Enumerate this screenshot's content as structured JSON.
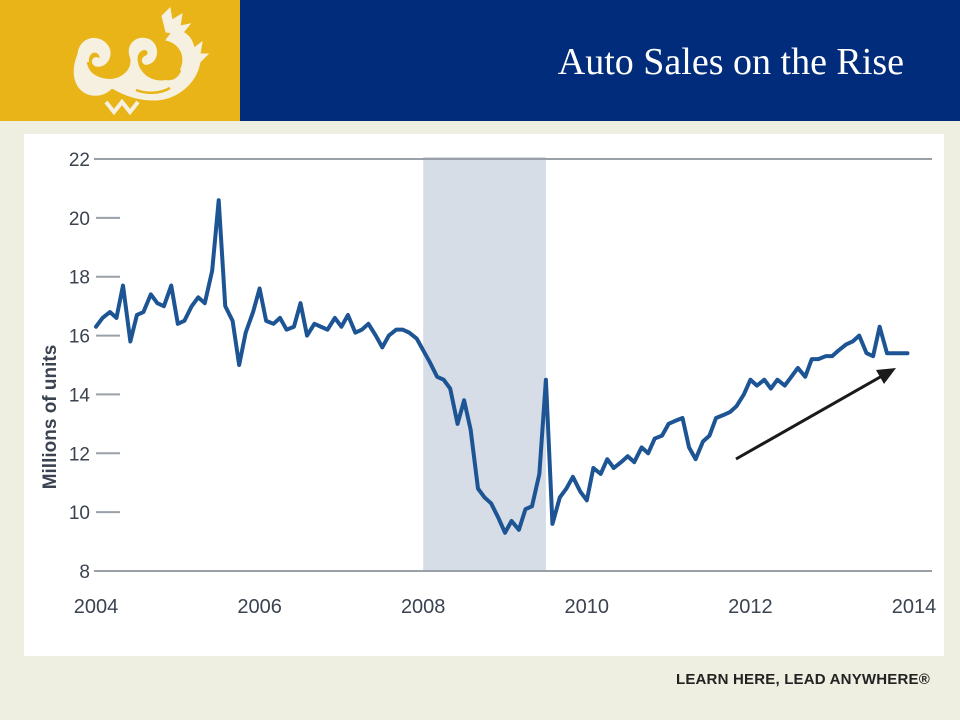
{
  "header": {
    "title": "Auto Sales on the Rise",
    "logo_icon": "dragon-logo-icon"
  },
  "colors": {
    "header_blue": "#002c7b",
    "logo_gold": "#e8b417",
    "series_line": "#1d5494",
    "recession_shade": "#d6dde6"
  },
  "chart_data": {
    "type": "line",
    "title": "",
    "xlabel": "",
    "ylabel": "Millions of units",
    "xlim": [
      2004,
      2014
    ],
    "ylim": [
      8,
      22
    ],
    "y_ticks": [
      "8",
      "10",
      "12",
      "14",
      "16",
      "18",
      "20",
      "22"
    ],
    "x_ticks": [
      "2004",
      "2006",
      "2008",
      "2010",
      "2012",
      "2014"
    ],
    "grid": "horizontal",
    "shaded_region": [
      2008,
      2009.5
    ],
    "annotation": "upward trend arrow (2011.8 to 2014)",
    "series": [
      {
        "name": "",
        "x": [
          2004.0,
          2004.08,
          2004.17,
          2004.25,
          2004.33,
          2004.42,
          2004.5,
          2004.58,
          2004.67,
          2004.75,
          2004.83,
          2004.92,
          2005.0,
          2005.08,
          2005.17,
          2005.25,
          2005.33,
          2005.42,
          2005.5,
          2005.58,
          2005.67,
          2005.75,
          2005.83,
          2005.92,
          2006.0,
          2006.08,
          2006.17,
          2006.25,
          2006.33,
          2006.42,
          2006.5,
          2006.58,
          2006.67,
          2006.75,
          2006.83,
          2006.92,
          2007.0,
          2007.08,
          2007.17,
          2007.25,
          2007.33,
          2007.42,
          2007.5,
          2007.58,
          2007.67,
          2007.75,
          2007.83,
          2007.92,
          2008.0,
          2008.08,
          2008.17,
          2008.25,
          2008.33,
          2008.42,
          2008.5,
          2008.58,
          2008.67,
          2008.75,
          2008.83,
          2008.92,
          2009.0,
          2009.08,
          2009.17,
          2009.25,
          2009.33,
          2009.42,
          2009.5,
          2009.58,
          2009.67,
          2009.75,
          2009.83,
          2009.92,
          2010.0,
          2010.08,
          2010.17,
          2010.25,
          2010.33,
          2010.42,
          2010.5,
          2010.58,
          2010.67,
          2010.75,
          2010.83,
          2010.92,
          2011.0,
          2011.08,
          2011.17,
          2011.25,
          2011.33,
          2011.42,
          2011.5,
          2011.58,
          2011.67,
          2011.75,
          2011.83,
          2011.92,
          2012.0,
          2012.08,
          2012.17,
          2012.25,
          2012.33,
          2012.42,
          2012.5,
          2012.58,
          2012.67,
          2012.75,
          2012.83,
          2012.92,
          2013.0,
          2013.08,
          2013.17,
          2013.25,
          2013.33,
          2013.42,
          2013.5,
          2013.58,
          2013.67,
          2013.75,
          2013.83,
          2013.92
        ],
        "values": [
          16.3,
          16.6,
          16.8,
          16.6,
          17.7,
          15.8,
          16.7,
          16.8,
          17.4,
          17.1,
          17.0,
          17.7,
          16.4,
          16.5,
          17.0,
          17.3,
          17.1,
          18.2,
          20.6,
          17.0,
          16.5,
          15.0,
          16.1,
          16.8,
          17.6,
          16.5,
          16.4,
          16.6,
          16.2,
          16.3,
          17.1,
          16.0,
          16.4,
          16.3,
          16.2,
          16.6,
          16.3,
          16.7,
          16.1,
          16.2,
          16.4,
          16.0,
          15.6,
          16.0,
          16.2,
          16.2,
          16.1,
          15.9,
          15.5,
          15.1,
          14.6,
          14.5,
          14.2,
          13.0,
          13.8,
          12.8,
          10.8,
          10.5,
          10.3,
          9.8,
          9.3,
          9.7,
          9.4,
          10.1,
          10.2,
          11.3,
          14.5,
          9.6,
          10.5,
          10.8,
          11.2,
          10.7,
          10.4,
          11.5,
          11.3,
          11.8,
          11.5,
          11.7,
          11.9,
          11.7,
          12.2,
          12.0,
          12.5,
          12.6,
          13.0,
          13.1,
          13.2,
          12.2,
          11.8,
          12.4,
          12.6,
          13.2,
          13.3,
          13.4,
          13.6,
          14.0,
          14.5,
          14.3,
          14.5,
          14.2,
          14.5,
          14.3,
          14.6,
          14.9,
          14.6,
          15.2,
          15.2,
          15.3,
          15.3,
          15.5,
          15.7,
          15.8,
          16.0,
          15.4,
          15.3,
          16.3,
          15.4,
          15.4,
          15.4,
          15.4
        ]
      }
    ]
  },
  "footer": {
    "tagline": "LEARN HERE, LEAD ANYWHERE®"
  }
}
